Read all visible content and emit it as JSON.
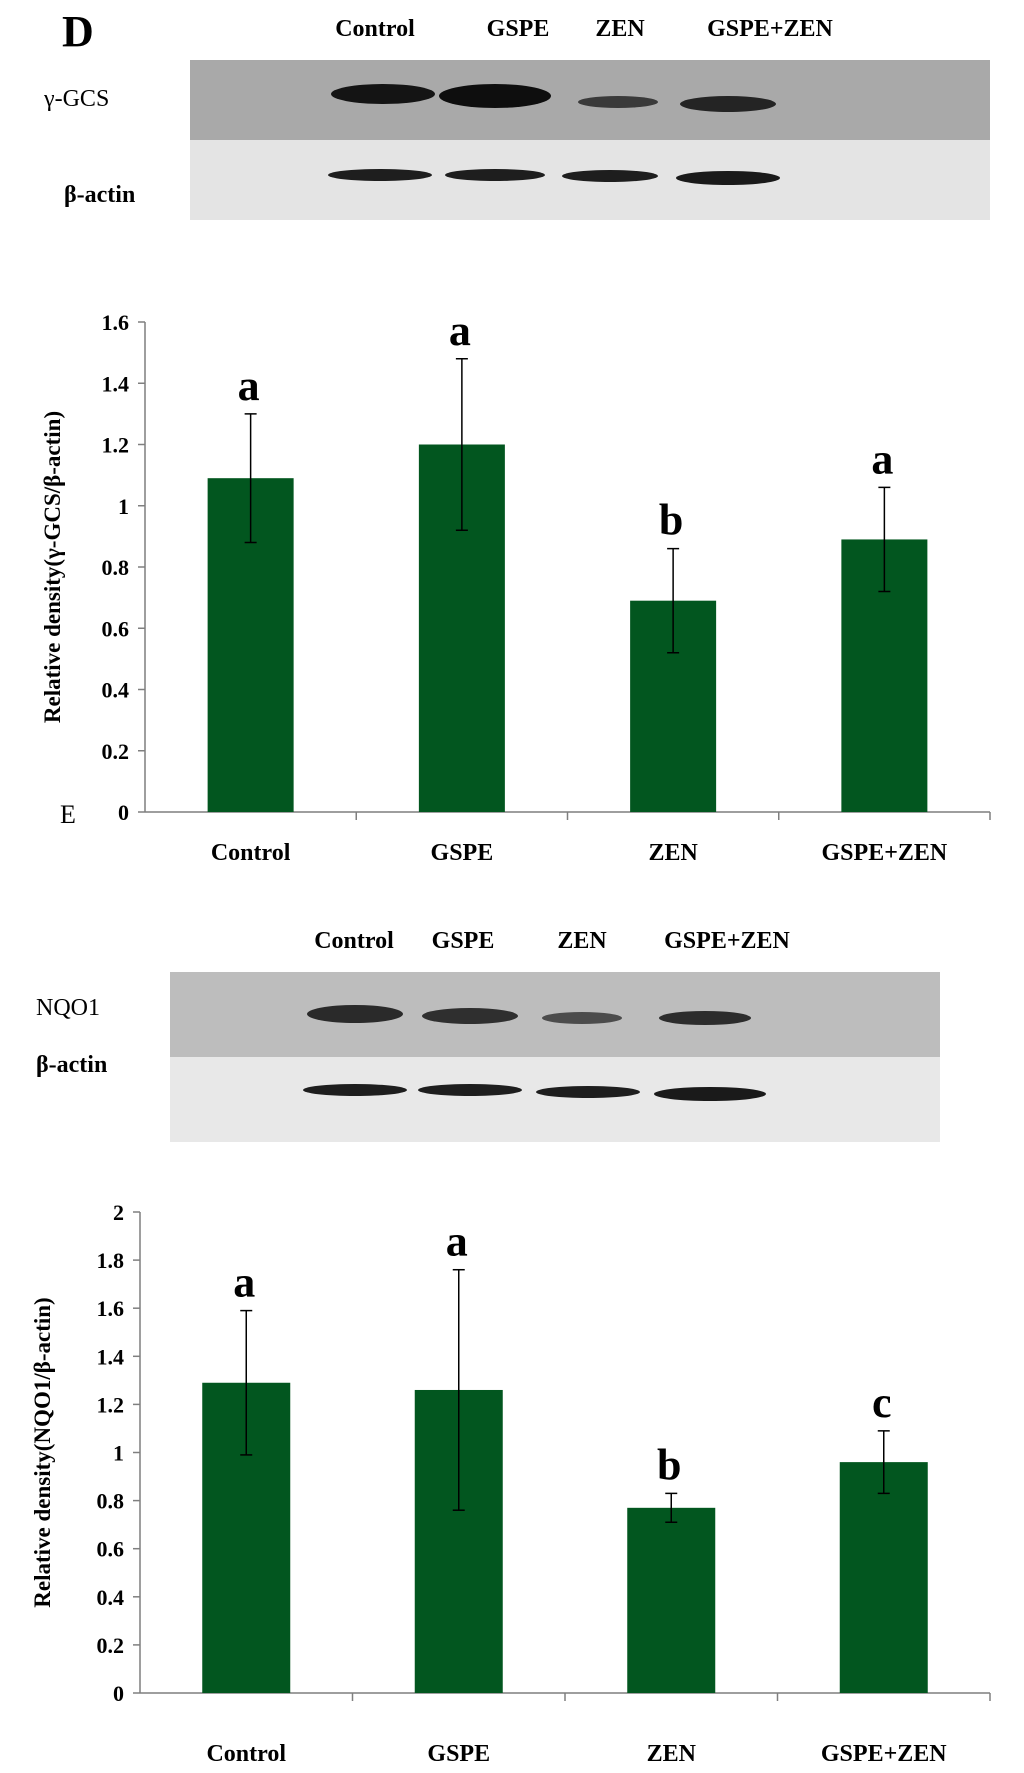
{
  "panel_d": {
    "letter": "D",
    "lanes": [
      "Control",
      "GSPE",
      "ZEN",
      "GSPE+ZEN"
    ],
    "blot_labels": {
      "target": "γ-GCS",
      "loading": "β-actin"
    },
    "colors": {
      "bar": "#02561f",
      "blot_top": "#a9a9a9",
      "blot_bottom": "#e4e4e4",
      "band": "#1c1c1c"
    }
  },
  "panel_e": {
    "letter": "E",
    "lanes": [
      "Control",
      "GSPE",
      "ZEN",
      "GSPE+ZEN"
    ],
    "blot_labels": {
      "target": "NQO1",
      "loading": "β-actin"
    }
  },
  "chart_data": [
    {
      "type": "bar",
      "categories": [
        "Control",
        "GSPE",
        "ZEN",
        "GSPE+ZEN"
      ],
      "values": [
        1.09,
        1.2,
        0.69,
        0.89
      ],
      "error": [
        0.21,
        0.28,
        0.17,
        0.17
      ],
      "significance": [
        "a",
        "a",
        "b",
        "a"
      ],
      "ylabel": "Relative density(γ-GCS/β-actin)",
      "xlabel": "",
      "ylim": [
        0,
        1.6
      ],
      "yticks": [
        "0",
        "0.2",
        "0.4",
        "0.6",
        "0.8",
        "1",
        "1.2",
        "1.4",
        "1.6"
      ],
      "grid": false,
      "color": "#02561f"
    },
    {
      "type": "bar",
      "categories": [
        "Control",
        "GSPE",
        "ZEN",
        "GSPE+ZEN"
      ],
      "values": [
        1.29,
        1.26,
        0.77,
        0.96
      ],
      "error": [
        0.3,
        0.5,
        0.06,
        0.13
      ],
      "significance": [
        "a",
        "a",
        "b",
        "c"
      ],
      "ylabel": "Relative density(NQO1/β-actin)",
      "xlabel": "",
      "ylim": [
        0,
        2
      ],
      "yticks": [
        "0",
        "0.2",
        "0.4",
        "0.6",
        "0.8",
        "1",
        "1.2",
        "1.4",
        "1.6",
        "1.8",
        "2"
      ],
      "grid": false,
      "color": "#02561f"
    }
  ]
}
